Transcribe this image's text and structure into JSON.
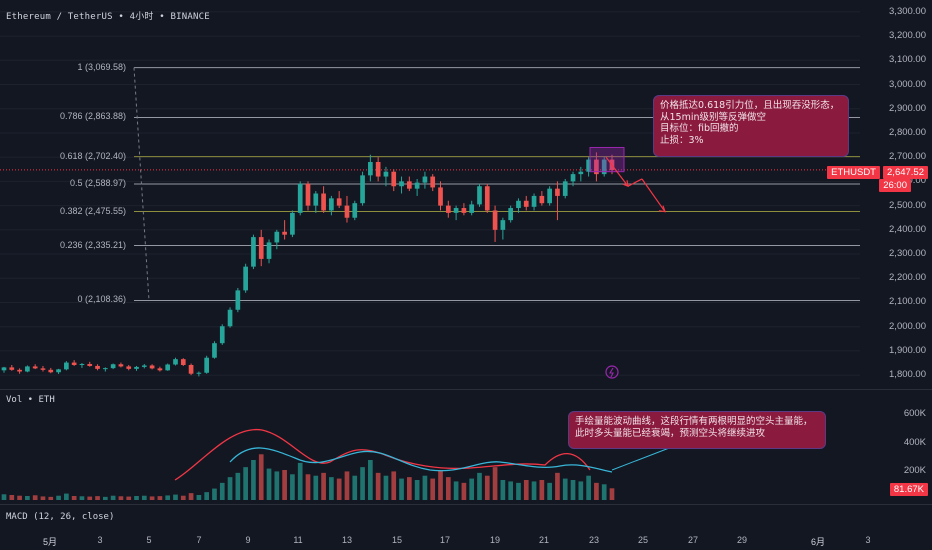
{
  "header": {
    "title": "Ethereum / TetherUS  • 4小时  • BINANCE",
    "volume_label": "Vol  • ETH",
    "macd_label": "MACD (12, 26, close)"
  },
  "price_axis": {
    "ticks": [
      "3,300.00",
      "3,200.00",
      "3,100.00",
      "3,000.00",
      "2,900.00",
      "2,800.00",
      "2,700.00",
      "2,600.00",
      "2,500.00",
      "2,400.00",
      "2,300.00",
      "2,200.00",
      "2,100.00",
      "2,000.00",
      "1,900.00",
      "1,800.00"
    ],
    "symbol_badge": "ETHUSDT",
    "current_price": "2,647.52",
    "countdown": "26:00"
  },
  "volume_axis": {
    "ticks": [
      "600K",
      "400K",
      "200K"
    ],
    "current_volume": "81.67K"
  },
  "fib_levels": [
    {
      "label": "1 (3,069.58)",
      "price": 3069.58,
      "color": "#9598a1"
    },
    {
      "label": "0.786 (2,863.88)",
      "price": 2863.88,
      "color": "#9598a1"
    },
    {
      "label": "0.618 (2,702.40)",
      "price": 2702.4,
      "color": "#8d8e3e"
    },
    {
      "label": "0.5 (2,588.97)",
      "price": 2588.97,
      "color": "#9598a1"
    },
    {
      "label": "0.382 (2,475.55)",
      "price": 2475.55,
      "color": "#8d8e3e"
    },
    {
      "label": "0.236 (2,335.21)",
      "price": 2335.21,
      "color": "#9598a1"
    },
    {
      "label": "0 (2,108.36)",
      "price": 2108.36,
      "color": "#9598a1"
    }
  ],
  "annotations": {
    "trade_note": [
      "价格抵达0.618引力位，且出现吞没形态，",
      "从15min级别等反弹做空",
      "目标位：fib回撤的",
      "止损：3%"
    ],
    "volume_note": [
      "手绘量能波动曲线，这段行情有两根明显的空头主量能，",
      "此时多头量能已经衰竭，预测空头将继续进攻"
    ]
  },
  "time_axis": [
    "5月",
    "3",
    "5",
    "7",
    "9",
    "11",
    "13",
    "15",
    "17",
    "19",
    "21",
    "23",
    "25",
    "27",
    "29",
    "6月",
    "3"
  ],
  "colors": {
    "background": "#131722",
    "up": "#26a69a",
    "down": "#ef5350",
    "grid": "#2a2e39",
    "note_bg": "#8a1b3f",
    "curve_red": "#f23645",
    "curve_blue": "#38b6d8"
  },
  "chart_data": {
    "type": "candlestick",
    "symbol": "ETHUSDT",
    "interval": "4h",
    "y_range": [
      1780,
      3320
    ],
    "candles": [
      [
        1820,
        1834,
        1810,
        1832
      ],
      [
        1832,
        1842,
        1818,
        1822
      ],
      [
        1822,
        1828,
        1806,
        1815
      ],
      [
        1815,
        1840,
        1812,
        1836
      ],
      [
        1836,
        1845,
        1825,
        1828
      ],
      [
        1828,
        1838,
        1815,
        1822
      ],
      [
        1822,
        1830,
        1808,
        1812
      ],
      [
        1812,
        1826,
        1805,
        1824
      ],
      [
        1824,
        1858,
        1820,
        1852
      ],
      [
        1852,
        1862,
        1838,
        1842
      ],
      [
        1842,
        1850,
        1830,
        1846
      ],
      [
        1846,
        1855,
        1835,
        1838
      ],
      [
        1838,
        1845,
        1820,
        1826
      ],
      [
        1826,
        1832,
        1815,
        1829
      ],
      [
        1829,
        1848,
        1825,
        1845
      ],
      [
        1845,
        1852,
        1832,
        1836
      ],
      [
        1836,
        1842,
        1820,
        1826
      ],
      [
        1826,
        1838,
        1818,
        1834
      ],
      [
        1834,
        1846,
        1828,
        1840
      ],
      [
        1840,
        1845,
        1824,
        1828
      ],
      [
        1828,
        1835,
        1815,
        1820
      ],
      [
        1820,
        1848,
        1818,
        1844
      ],
      [
        1844,
        1872,
        1840,
        1866
      ],
      [
        1866,
        1870,
        1838,
        1842
      ],
      [
        1842,
        1848,
        1800,
        1806
      ],
      [
        1806,
        1815,
        1795,
        1810
      ],
      [
        1810,
        1880,
        1806,
        1872
      ],
      [
        1872,
        1940,
        1868,
        1932
      ],
      [
        1932,
        2010,
        1925,
        2002
      ],
      [
        2002,
        2080,
        1996,
        2070
      ],
      [
        2070,
        2160,
        2060,
        2150
      ],
      [
        2150,
        2260,
        2140,
        2248
      ],
      [
        2248,
        2380,
        2238,
        2370
      ],
      [
        2370,
        2400,
        2250,
        2280
      ],
      [
        2280,
        2360,
        2262,
        2348
      ],
      [
        2348,
        2400,
        2320,
        2392
      ],
      [
        2392,
        2440,
        2360,
        2380
      ],
      [
        2380,
        2480,
        2370,
        2470
      ],
      [
        2470,
        2600,
        2460,
        2590
      ],
      [
        2590,
        2600,
        2480,
        2500
      ],
      [
        2500,
        2560,
        2470,
        2550
      ],
      [
        2550,
        2580,
        2470,
        2480
      ],
      [
        2480,
        2540,
        2460,
        2530
      ],
      [
        2530,
        2560,
        2490,
        2500
      ],
      [
        2500,
        2540,
        2430,
        2450
      ],
      [
        2450,
        2520,
        2440,
        2510
      ],
      [
        2510,
        2640,
        2500,
        2625
      ],
      [
        2625,
        2710,
        2600,
        2680
      ],
      [
        2680,
        2700,
        2600,
        2620
      ],
      [
        2620,
        2660,
        2580,
        2640
      ],
      [
        2640,
        2650,
        2560,
        2580
      ],
      [
        2580,
        2620,
        2550,
        2600
      ],
      [
        2600,
        2620,
        2560,
        2570
      ],
      [
        2570,
        2610,
        2540,
        2595
      ],
      [
        2595,
        2640,
        2570,
        2620
      ],
      [
        2620,
        2630,
        2560,
        2575
      ],
      [
        2575,
        2600,
        2480,
        2500
      ],
      [
        2500,
        2520,
        2450,
        2470
      ],
      [
        2470,
        2500,
        2440,
        2490
      ],
      [
        2490,
        2510,
        2460,
        2470
      ],
      [
        2470,
        2520,
        2460,
        2505
      ],
      [
        2505,
        2590,
        2495,
        2580
      ],
      [
        2580,
        2590,
        2470,
        2480
      ],
      [
        2480,
        2500,
        2350,
        2400
      ],
      [
        2400,
        2450,
        2360,
        2440
      ],
      [
        2440,
        2500,
        2430,
        2490
      ],
      [
        2490,
        2530,
        2470,
        2520
      ],
      [
        2520,
        2540,
        2480,
        2495
      ],
      [
        2495,
        2550,
        2480,
        2540
      ],
      [
        2540,
        2560,
        2500,
        2510
      ],
      [
        2510,
        2580,
        2500,
        2570
      ],
      [
        2570,
        2600,
        2440,
        2540
      ],
      [
        2540,
        2610,
        2530,
        2600
      ],
      [
        2600,
        2640,
        2580,
        2630
      ],
      [
        2630,
        2660,
        2600,
        2640
      ],
      [
        2640,
        2700,
        2620,
        2690
      ],
      [
        2690,
        2720,
        2600,
        2630
      ],
      [
        2630,
        2700,
        2620,
        2690
      ],
      [
        2690,
        2710,
        2630,
        2647
      ]
    ],
    "volumes": [
      40,
      35,
      30,
      28,
      33,
      25,
      22,
      30,
      45,
      28,
      26,
      24,
      27,
      22,
      30,
      26,
      24,
      28,
      30,
      25,
      27,
      32,
      38,
      30,
      48,
      35,
      55,
      80,
      120,
      160,
      190,
      230,
      280,
      320,
      220,
      200,
      210,
      180,
      260,
      180,
      170,
      190,
      160,
      150,
      200,
      170,
      230,
      280,
      190,
      170,
      200,
      150,
      160,
      140,
      170,
      150,
      210,
      160,
      130,
      120,
      150,
      190,
      170,
      230,
      140,
      130,
      120,
      140,
      130,
      140,
      120,
      190,
      150,
      140,
      130,
      170,
      120,
      110,
      82
    ]
  }
}
